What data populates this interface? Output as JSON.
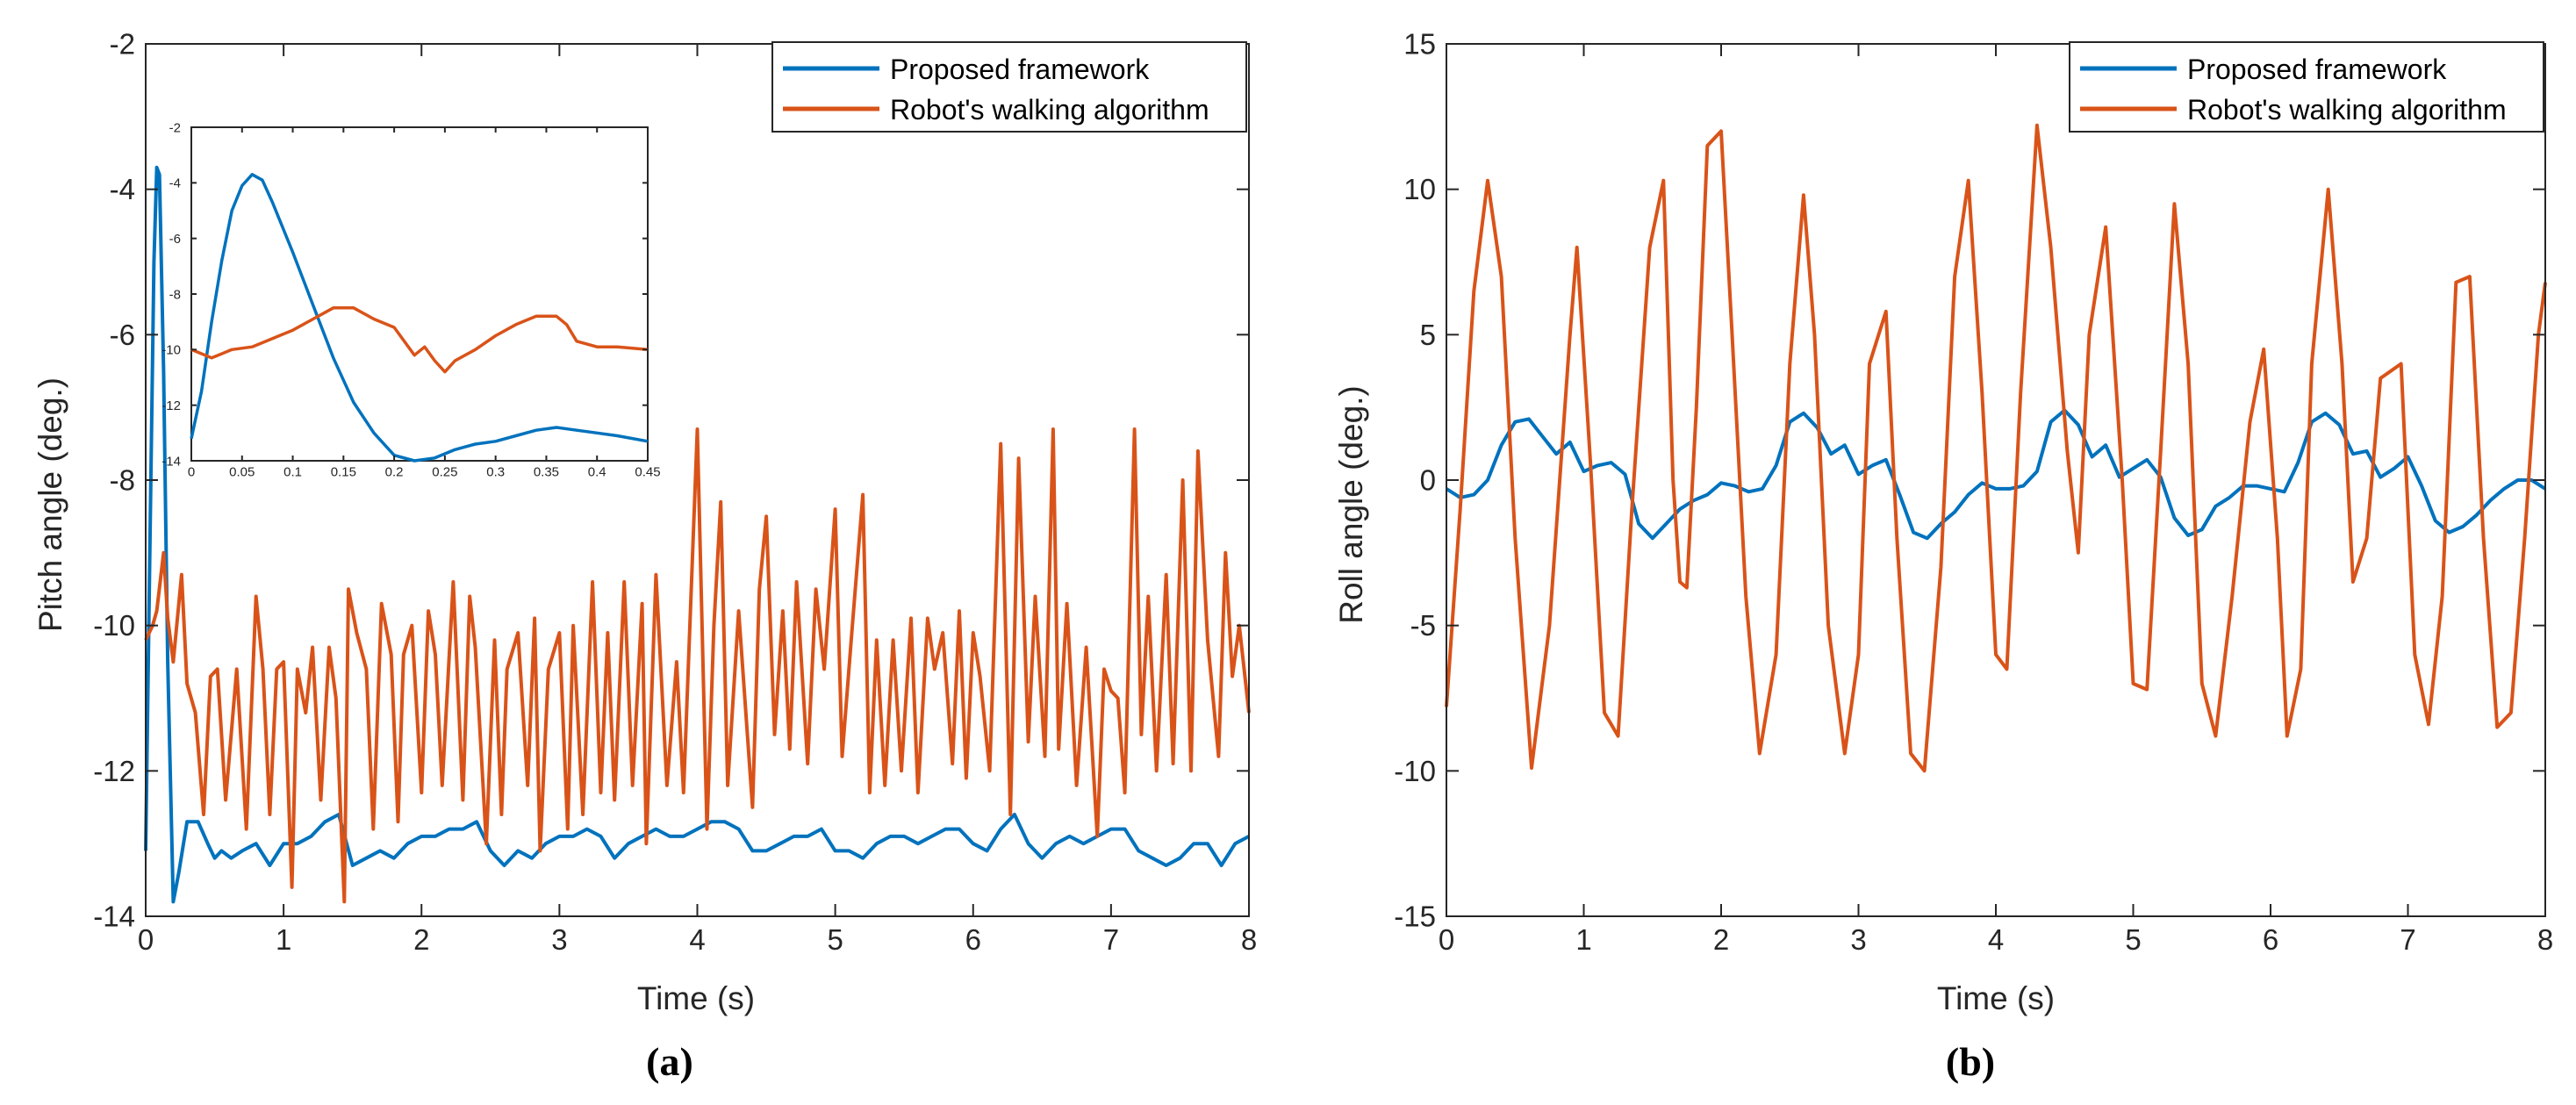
{
  "colors": {
    "proposed": "#0072BD",
    "robot": "#D95319",
    "axis": "#262626"
  },
  "legend": {
    "proposed": "Proposed framework",
    "robot": "Robot's walking algorithm"
  },
  "captions": {
    "a": "(a)",
    "b": "(b)"
  },
  "chart_data": [
    {
      "id": "a",
      "type": "line",
      "xlabel": "Time (s)",
      "ylabel": "Pitch angle (deg.)",
      "xlim": [
        0,
        8
      ],
      "ylim": [
        -14,
        -2
      ],
      "xticks": [
        0,
        1,
        2,
        3,
        4,
        5,
        6,
        7,
        8
      ],
      "yticks": [
        -14,
        -12,
        -10,
        -8,
        -6,
        -4,
        -2
      ],
      "legend_position": "top-right",
      "series": [
        {
          "name": "Proposed framework",
          "x": [
            0,
            0.03,
            0.06,
            0.08,
            0.1,
            0.13,
            0.16,
            0.2,
            0.24,
            0.3,
            0.38,
            0.45,
            0.5,
            0.55,
            0.62,
            0.7,
            0.8,
            0.9,
            1.0,
            1.1,
            1.2,
            1.3,
            1.4,
            1.5,
            1.6,
            1.7,
            1.8,
            1.9,
            2.0,
            2.1,
            2.2,
            2.3,
            2.4,
            2.5,
            2.6,
            2.7,
            2.8,
            2.9,
            3.0,
            3.1,
            3.2,
            3.3,
            3.4,
            3.5,
            3.6,
            3.7,
            3.8,
            3.9,
            4.0,
            4.1,
            4.2,
            4.3,
            4.4,
            4.5,
            4.6,
            4.7,
            4.8,
            4.9,
            5.0,
            5.1,
            5.2,
            5.3,
            5.4,
            5.5,
            5.6,
            5.7,
            5.8,
            5.9,
            6.0,
            6.1,
            6.2,
            6.3,
            6.4,
            6.5,
            6.6,
            6.7,
            6.8,
            6.9,
            7.0,
            7.1,
            7.2,
            7.3,
            7.4,
            7.5,
            7.6,
            7.7,
            7.8,
            7.9,
            8.0
          ],
          "values": [
            -13.1,
            -9.0,
            -5.0,
            -3.7,
            -3.8,
            -6.5,
            -10.5,
            -13.8,
            -13.4,
            -12.7,
            -12.7,
            -13.0,
            -13.2,
            -13.1,
            -13.2,
            -13.1,
            -13.0,
            -13.3,
            -13.0,
            -13.0,
            -12.9,
            -12.7,
            -12.6,
            -13.3,
            -13.2,
            -13.1,
            -13.2,
            -13.0,
            -12.9,
            -12.9,
            -12.8,
            -12.8,
            -12.7,
            -13.1,
            -13.3,
            -13.1,
            -13.2,
            -13.0,
            -12.9,
            -12.9,
            -12.8,
            -12.9,
            -13.2,
            -13.0,
            -12.9,
            -12.8,
            -12.9,
            -12.9,
            -12.8,
            -12.7,
            -12.7,
            -12.8,
            -13.1,
            -13.1,
            -13.0,
            -12.9,
            -12.9,
            -12.8,
            -13.1,
            -13.1,
            -13.2,
            -13.0,
            -12.9,
            -12.9,
            -13.0,
            -12.9,
            -12.8,
            -12.8,
            -13.0,
            -13.1,
            -12.8,
            -12.6,
            -13.0,
            -13.2,
            -13.0,
            -12.9,
            -13.0,
            -12.9,
            -12.8,
            -12.8,
            -13.1,
            -13.2,
            -13.3,
            -13.2,
            -13.0,
            -13.0,
            -13.3,
            -13.0,
            -12.9
          ]
        },
        {
          "name": "Robot's walking algorithm",
          "x": [
            0,
            0.05,
            0.08,
            0.13,
            0.16,
            0.2,
            0.26,
            0.3,
            0.36,
            0.42,
            0.47,
            0.52,
            0.58,
            0.66,
            0.73,
            0.8,
            0.85,
            0.9,
            0.95,
            1.0,
            1.06,
            1.1,
            1.16,
            1.21,
            1.27,
            1.33,
            1.38,
            1.44,
            1.47,
            1.53,
            1.6,
            1.65,
            1.71,
            1.78,
            1.83,
            1.87,
            1.93,
            2.0,
            2.05,
            2.1,
            2.15,
            2.23,
            2.3,
            2.35,
            2.39,
            2.47,
            2.53,
            2.58,
            2.62,
            2.7,
            2.77,
            2.82,
            2.86,
            2.92,
            3.0,
            3.06,
            3.1,
            3.17,
            3.24,
            3.3,
            3.35,
            3.4,
            3.47,
            3.53,
            3.6,
            3.63,
            3.7,
            3.78,
            3.85,
            3.9,
            4.0,
            4.07,
            4.12,
            4.17,
            4.22,
            4.3,
            4.4,
            4.45,
            4.5,
            4.56,
            4.62,
            4.67,
            4.72,
            4.8,
            4.86,
            4.92,
            5.0,
            5.05,
            5.12,
            5.2,
            5.25,
            5.3,
            5.36,
            5.42,
            5.48,
            5.55,
            5.6,
            5.67,
            5.72,
            5.78,
            5.85,
            5.9,
            5.95,
            6.0,
            6.05,
            6.12,
            6.2,
            6.27,
            6.33,
            6.4,
            6.45,
            6.52,
            6.58,
            6.62,
            6.68,
            6.75,
            6.82,
            6.9,
            6.95,
            7.0,
            7.05,
            7.1,
            7.17,
            7.22,
            7.27,
            7.33,
            7.4,
            7.45,
            7.52,
            7.58,
            7.63,
            7.7,
            7.78,
            7.83,
            7.88,
            7.93,
            8.0
          ],
          "values": [
            -10.2,
            -10.0,
            -9.8,
            -9.0,
            -9.9,
            -10.5,
            -9.3,
            -10.8,
            -11.2,
            -12.6,
            -10.7,
            -10.6,
            -12.4,
            -10.6,
            -12.8,
            -9.6,
            -10.6,
            -12.6,
            -10.6,
            -10.5,
            -13.6,
            -10.6,
            -11.2,
            -10.3,
            -12.4,
            -10.3,
            -11.0,
            -13.8,
            -9.5,
            -10.1,
            -10.6,
            -12.8,
            -9.7,
            -10.4,
            -12.7,
            -10.4,
            -10.0,
            -12.3,
            -9.8,
            -10.4,
            -12.2,
            -9.4,
            -12.4,
            -9.6,
            -10.3,
            -13.0,
            -10.2,
            -12.6,
            -10.6,
            -10.1,
            -12.2,
            -9.9,
            -13.1,
            -10.6,
            -10.1,
            -12.8,
            -10.0,
            -12.6,
            -9.4,
            -12.3,
            -10.1,
            -12.4,
            -9.4,
            -12.2,
            -9.7,
            -13.0,
            -9.3,
            -12.2,
            -10.5,
            -12.3,
            -7.3,
            -12.8,
            -10.0,
            -8.3,
            -12.2,
            -9.8,
            -12.5,
            -9.5,
            -8.5,
            -11.5,
            -9.8,
            -11.7,
            -9.4,
            -11.9,
            -9.5,
            -10.6,
            -8.4,
            -11.8,
            -10.1,
            -8.2,
            -12.3,
            -10.2,
            -12.2,
            -10.2,
            -12.0,
            -9.9,
            -12.3,
            -9.9,
            -10.6,
            -10.1,
            -11.9,
            -9.8,
            -12.1,
            -10.1,
            -10.7,
            -12.0,
            -7.5,
            -12.6,
            -7.7,
            -11.6,
            -9.6,
            -11.8,
            -7.3,
            -11.7,
            -9.7,
            -12.2,
            -10.3,
            -12.9,
            -10.6,
            -10.9,
            -11.0,
            -12.3,
            -7.3,
            -11.5,
            -9.6,
            -12.0,
            -9.3,
            -11.9,
            -8.0,
            -12.0,
            -7.6,
            -10.2,
            -11.8,
            -9.0,
            -10.7,
            -10.0,
            -11.2
          ]
        }
      ],
      "inset": {
        "xlim": [
          0,
          0.45
        ],
        "ylim": [
          -14,
          -2
        ],
        "xticks": [
          0,
          0.05,
          0.1,
          0.15,
          0.2,
          0.25,
          0.3,
          0.35,
          0.4,
          0.45
        ],
        "xticklabels": [
          "0",
          "0.05",
          "0.1",
          "0.15",
          "0.2",
          "0.25",
          "0.3",
          "0.35",
          "0.4",
          "0.45"
        ],
        "yticks": [
          -14,
          -12,
          -10,
          -8,
          -6,
          -4,
          -2
        ],
        "series": [
          {
            "name": "Proposed framework",
            "x": [
              0,
              0.01,
              0.02,
              0.03,
              0.04,
              0.05,
              0.06,
              0.07,
              0.08,
              0.09,
              0.1,
              0.12,
              0.14,
              0.16,
              0.18,
              0.2,
              0.22,
              0.24,
              0.26,
              0.28,
              0.3,
              0.32,
              0.34,
              0.36,
              0.38,
              0.4,
              0.42,
              0.45
            ],
            "values": [
              -13.2,
              -11.5,
              -9.0,
              -6.8,
              -5.0,
              -4.1,
              -3.7,
              -3.9,
              -4.7,
              -5.6,
              -6.5,
              -8.4,
              -10.3,
              -11.9,
              -13.0,
              -13.8,
              -14.0,
              -13.9,
              -13.6,
              -13.4,
              -13.3,
              -13.1,
              -12.9,
              -12.8,
              -12.9,
              -13.0,
              -13.1,
              -13.3
            ]
          },
          {
            "name": "Robot's walking algorithm",
            "x": [
              0,
              0.02,
              0.04,
              0.06,
              0.08,
              0.1,
              0.12,
              0.14,
              0.16,
              0.18,
              0.2,
              0.22,
              0.23,
              0.24,
              0.25,
              0.26,
              0.28,
              0.3,
              0.32,
              0.34,
              0.36,
              0.37,
              0.38,
              0.4,
              0.42,
              0.45
            ],
            "values": [
              -10.0,
              -10.3,
              -10.0,
              -9.9,
              -9.6,
              -9.3,
              -8.9,
              -8.5,
              -8.5,
              -8.9,
              -9.2,
              -10.2,
              -9.9,
              -10.4,
              -10.8,
              -10.4,
              -10.0,
              -9.5,
              -9.1,
              -8.8,
              -8.8,
              -9.1,
              -9.7,
              -9.9,
              -9.9,
              -10.0
            ]
          }
        ]
      }
    },
    {
      "id": "b",
      "type": "line",
      "xlabel": "Time (s)",
      "ylabel": "Roll angle (deg.)",
      "xlim": [
        0,
        8
      ],
      "ylim": [
        -15,
        15
      ],
      "xticks": [
        0,
        1,
        2,
        3,
        4,
        5,
        6,
        7,
        8
      ],
      "yticks": [
        -15,
        -10,
        -5,
        0,
        5,
        10,
        15
      ],
      "legend_position": "top-right",
      "series": [
        {
          "name": "Proposed framework",
          "x": [
            0,
            0.1,
            0.2,
            0.3,
            0.4,
            0.5,
            0.6,
            0.7,
            0.8,
            0.9,
            1.0,
            1.1,
            1.2,
            1.3,
            1.4,
            1.5,
            1.6,
            1.7,
            1.8,
            1.9,
            2.0,
            2.1,
            2.2,
            2.3,
            2.4,
            2.5,
            2.6,
            2.7,
            2.8,
            2.9,
            3.0,
            3.1,
            3.2,
            3.3,
            3.4,
            3.5,
            3.6,
            3.7,
            3.8,
            3.9,
            4.0,
            4.1,
            4.2,
            4.3,
            4.4,
            4.5,
            4.6,
            4.7,
            4.8,
            4.9,
            5.0,
            5.1,
            5.2,
            5.3,
            5.4,
            5.5,
            5.6,
            5.7,
            5.8,
            5.9,
            6.0,
            6.1,
            6.2,
            6.3,
            6.4,
            6.5,
            6.6,
            6.7,
            6.8,
            6.9,
            7.0,
            7.1,
            7.2,
            7.3,
            7.4,
            7.5,
            7.6,
            7.7,
            7.8,
            7.9,
            8.0
          ],
          "values": [
            -0.3,
            -0.6,
            -0.5,
            0.0,
            1.2,
            2.0,
            2.1,
            1.5,
            0.9,
            1.3,
            0.3,
            0.5,
            0.6,
            0.2,
            -1.5,
            -2.0,
            -1.5,
            -1.0,
            -0.7,
            -0.5,
            -0.1,
            -0.2,
            -0.4,
            -0.3,
            0.5,
            2.0,
            2.3,
            1.8,
            0.9,
            1.2,
            0.2,
            0.5,
            0.7,
            -0.5,
            -1.8,
            -2.0,
            -1.5,
            -1.1,
            -0.5,
            -0.1,
            -0.3,
            -0.3,
            -0.2,
            0.3,
            2.0,
            2.4,
            1.9,
            0.8,
            1.2,
            0.1,
            0.4,
            0.7,
            0.1,
            -1.3,
            -1.9,
            -1.7,
            -0.9,
            -0.6,
            -0.2,
            -0.2,
            -0.3,
            -0.4,
            0.6,
            2.0,
            2.3,
            1.9,
            0.9,
            1.0,
            0.1,
            0.4,
            0.8,
            -0.2,
            -1.4,
            -1.8,
            -1.6,
            -1.2,
            -0.7,
            -0.3,
            0.0,
            0.0,
            -0.3
          ]
        },
        {
          "name": "Robot's walking algorithm",
          "x": [
            0,
            0.1,
            0.2,
            0.3,
            0.4,
            0.5,
            0.62,
            0.75,
            0.9,
            0.95,
            1.05,
            1.15,
            1.25,
            1.35,
            1.48,
            1.58,
            1.65,
            1.7,
            1.75,
            1.82,
            1.9,
            2.0,
            2.08,
            2.18,
            2.28,
            2.4,
            2.5,
            2.6,
            2.68,
            2.78,
            2.9,
            3.0,
            3.08,
            3.2,
            3.28,
            3.38,
            3.48,
            3.6,
            3.7,
            3.8,
            3.9,
            4.0,
            4.08,
            4.18,
            4.3,
            4.4,
            4.52,
            4.6,
            4.68,
            4.8,
            4.92,
            5.0,
            5.1,
            5.2,
            5.3,
            5.4,
            5.5,
            5.6,
            5.72,
            5.85,
            5.95,
            6.05,
            6.12,
            6.22,
            6.3,
            6.42,
            6.52,
            6.6,
            6.7,
            6.8,
            6.95,
            7.05,
            7.15,
            7.25,
            7.35,
            7.45,
            7.55,
            7.65,
            7.75,
            7.85,
            7.95,
            8.0
          ],
          "values": [
            -7.8,
            -1.0,
            6.5,
            10.3,
            7.0,
            -2.0,
            -9.9,
            -5.0,
            5.0,
            8.0,
            0.5,
            -8.0,
            -8.8,
            -1.0,
            8.0,
            10.3,
            0.0,
            -3.5,
            -3.7,
            2.5,
            11.5,
            12.0,
            5.0,
            -4.0,
            -9.4,
            -6.0,
            4.0,
            9.8,
            5.0,
            -5.0,
            -9.4,
            -6.0,
            4.0,
            5.8,
            -2.0,
            -9.4,
            -10.0,
            -3.0,
            7.0,
            10.3,
            3.0,
            -6.0,
            -6.5,
            3.0,
            12.2,
            8.0,
            1.0,
            -2.5,
            5.0,
            8.7,
            0.0,
            -7.0,
            -7.2,
            1.0,
            9.5,
            4.0,
            -7.0,
            -8.8,
            -4.0,
            2.0,
            4.5,
            -2.0,
            -8.8,
            -6.5,
            4.0,
            10.0,
            4.0,
            -3.5,
            -2.0,
            3.5,
            4.0,
            -6.0,
            -8.4,
            -4.0,
            6.8,
            7.0,
            -2.0,
            -8.5,
            -8.0,
            -2.0,
            5.0,
            6.8
          ]
        }
      ]
    }
  ]
}
